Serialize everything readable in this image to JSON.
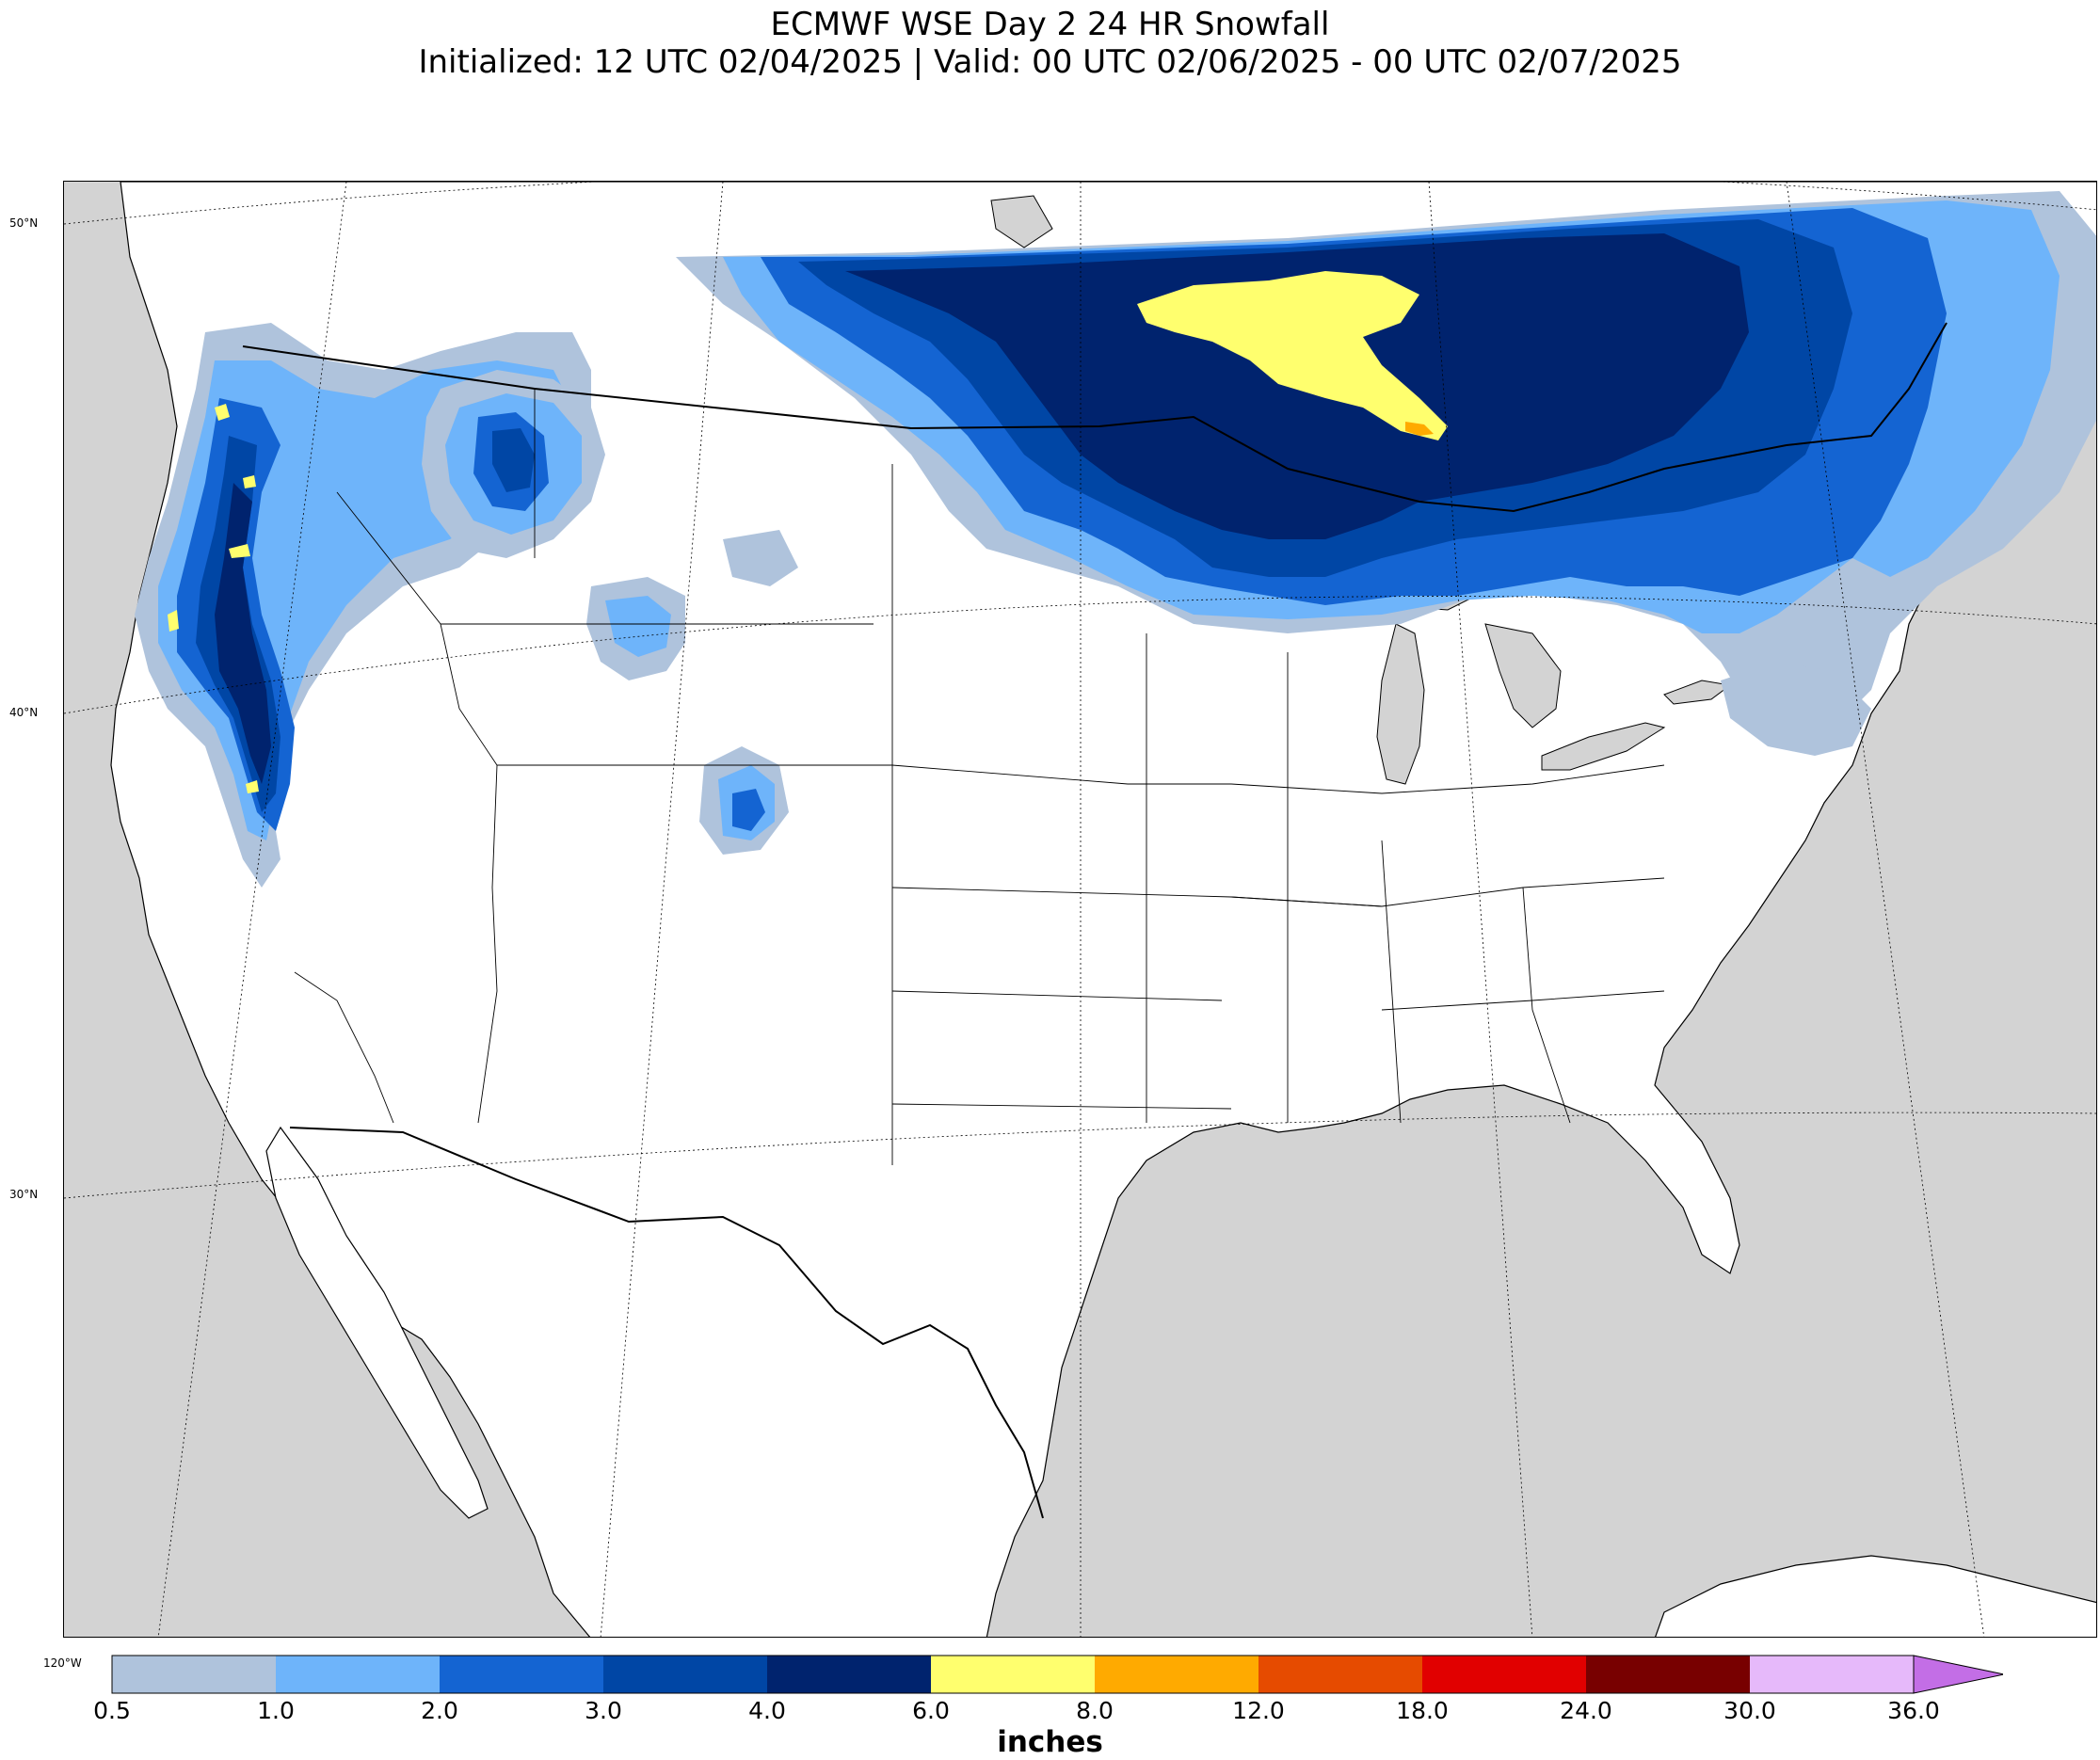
{
  "title": {
    "line1": "ECMWF WSE Day 2 24 HR Snowfall",
    "line2": "Initialized: 12 UTC 02/04/2025 | Valid: 00 UTC 02/06/2025 - 00 UTC 02/07/2025"
  },
  "map": {
    "region": "Contiguous United States with southern Canada and northern Mexico",
    "lat_labels": [
      "50°N",
      "40°N",
      "30°N"
    ],
    "lon_label": "120°W",
    "colors": {
      "ocean": "#d3d3d3",
      "land": "#ffffff"
    },
    "snowfall_regions": [
      "Great Lakes / Ontario band (4.0–6.0 in core, 6.0–8.0 in with local 8.0–12.0 north of Lake Superior)",
      "Northeast / Quebec / Maine (0.5–4.0 in)",
      "Pacific Northwest Cascades and Sierra Nevada (1.0–6.0 in, local 6.0–8.0)",
      "Idaho / Montana / Wyoming mountains (0.5–4.0 in)",
      "Colorado Rockies (0.5–3.0 in)"
    ]
  },
  "colorbar": {
    "units": "inches",
    "ticks": [
      "0.5",
      "1.0",
      "2.0",
      "3.0",
      "4.0",
      "6.0",
      "8.0",
      "12.0",
      "18.0",
      "24.0",
      "30.0",
      "36.0"
    ],
    "colors": [
      "#afc3dc",
      "#6eb4fa",
      "#1464d2",
      "#0046a5",
      "#00236e",
      "#ffff6e",
      "#ffaa00",
      "#e64b00",
      "#e10000",
      "#780000",
      "#e6b9fa",
      "#c36ee6"
    ],
    "extend": "max"
  }
}
